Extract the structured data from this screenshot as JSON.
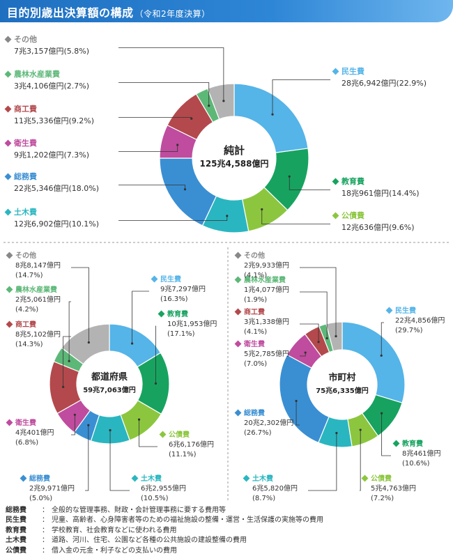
{
  "header": {
    "title": "目的別歳出決算額の構成",
    "subtitle": "（令和2年度決算）"
  },
  "colors": {
    "民生費": "#55b4e8",
    "教育費": "#17a35f",
    "公債費": "#8cc63f",
    "土木費": "#2ab6c0",
    "総務費": "#3a8fd3",
    "衛生費": "#bf4c9e",
    "商工費": "#b3494c",
    "農林水産業費": "#5db878",
    "その他": "#b3b3b3"
  },
  "chart_data": [
    {
      "type": "pie",
      "id": "total",
      "center_title": "純計",
      "center_value": "125兆4,588億円",
      "slices": [
        {
          "name": "民生費",
          "amount": "28兆6,942億円",
          "pct": "(22.9%)",
          "value": 22.9
        },
        {
          "name": "教育費",
          "amount": "18兆961億円",
          "pct": "(14.4%)",
          "value": 14.4
        },
        {
          "name": "公債費",
          "amount": "12兆636億円",
          "pct": "(9.6%)",
          "value": 9.6
        },
        {
          "name": "土木費",
          "amount": "12兆6,902億円",
          "pct": "(10.1%)",
          "value": 10.1
        },
        {
          "name": "総務費",
          "amount": "22兆5,346億円",
          "pct": "(18.0%)",
          "value": 18.0
        },
        {
          "name": "衛生費",
          "amount": "9兆1,202億円",
          "pct": "(7.3%)",
          "value": 7.3
        },
        {
          "name": "商工費",
          "amount": "11兆5,336億円",
          "pct": "(9.2%)",
          "value": 9.2
        },
        {
          "name": "農林水産業費",
          "amount": "3兆4,106億円",
          "pct": "(2.7%)",
          "value": 2.7
        },
        {
          "name": "その他",
          "amount": "7兆3,157億円",
          "pct": "(5.8%)",
          "value": 5.8
        }
      ]
    },
    {
      "type": "pie",
      "id": "prefectures",
      "center_title": "都道府県",
      "center_value": "59兆7,063億円",
      "slices": [
        {
          "name": "民生費",
          "amount": "9兆7,297億円",
          "pct": "(16.3%)",
          "value": 16.3
        },
        {
          "name": "教育費",
          "amount": "10兆1,953億円",
          "pct": "(17.1%)",
          "value": 17.1
        },
        {
          "name": "公債費",
          "amount": "6兆6,176億円",
          "pct": "(11.1%)",
          "value": 11.1
        },
        {
          "name": "土木費",
          "amount": "6兆2,955億円",
          "pct": "(10.5%)",
          "value": 10.5
        },
        {
          "name": "総務費",
          "amount": "2兆9,971億円",
          "pct": "(5.0%)",
          "value": 5.0
        },
        {
          "name": "衛生費",
          "amount": "4兆401億円",
          "pct": "(6.8%)",
          "value": 6.8
        },
        {
          "name": "商工費",
          "amount": "8兆5,102億円",
          "pct": "(14.3%)",
          "value": 14.3
        },
        {
          "name": "農林水産業費",
          "amount": "2兆5,061億円",
          "pct": "(4.2%)",
          "value": 4.2
        },
        {
          "name": "その他",
          "amount": "8兆8,147億円",
          "pct": "(14.7%)",
          "value": 14.7
        }
      ]
    },
    {
      "type": "pie",
      "id": "municipalities",
      "center_title": "市町村",
      "center_value": "75兆6,335億円",
      "slices": [
        {
          "name": "民生費",
          "amount": "22兆4,856億円",
          "pct": "(29.7%)",
          "value": 29.7
        },
        {
          "name": "教育費",
          "amount": "8兆461億円",
          "pct": "(10.6%)",
          "value": 10.6
        },
        {
          "name": "公債費",
          "amount": "5兆4,763億円",
          "pct": "(7.2%)",
          "value": 7.2
        },
        {
          "name": "土木費",
          "amount": "6兆5,820億円",
          "pct": "(8.7%)",
          "value": 8.7
        },
        {
          "name": "総務費",
          "amount": "20兆2,302億円",
          "pct": "(26.7%)",
          "value": 26.7
        },
        {
          "name": "衛生費",
          "amount": "5兆2,785億円",
          "pct": "(7.0%)",
          "value": 7.0
        },
        {
          "name": "商工費",
          "amount": "3兆1,338億円",
          "pct": "(4.1%)",
          "value": 4.1
        },
        {
          "name": "農林水産業費",
          "amount": "1兆4,077億円",
          "pct": "(1.9%)",
          "value": 1.9
        },
        {
          "name": "その他",
          "amount": "2兆9,933億円",
          "pct": "(4.1%)",
          "value": 4.1
        }
      ]
    }
  ],
  "footnotes": [
    {
      "term": "総務費",
      "desc": "全般的な管理事務、財政・会計管理事務に要する費用等"
    },
    {
      "term": "民生費",
      "desc": "児童、高齢者、心身障害者等のための福祉施設の整備・運営・生活保護の実施等の費用"
    },
    {
      "term": "教育費",
      "desc": "学校教育、社会教育などに使われる費用"
    },
    {
      "term": "土木費",
      "desc": "道路、河川、住宅、公園など各種の公共施設の建設整備の費用"
    },
    {
      "term": "公債費",
      "desc": "借入金の元金・利子などの支払いの費用"
    }
  ]
}
